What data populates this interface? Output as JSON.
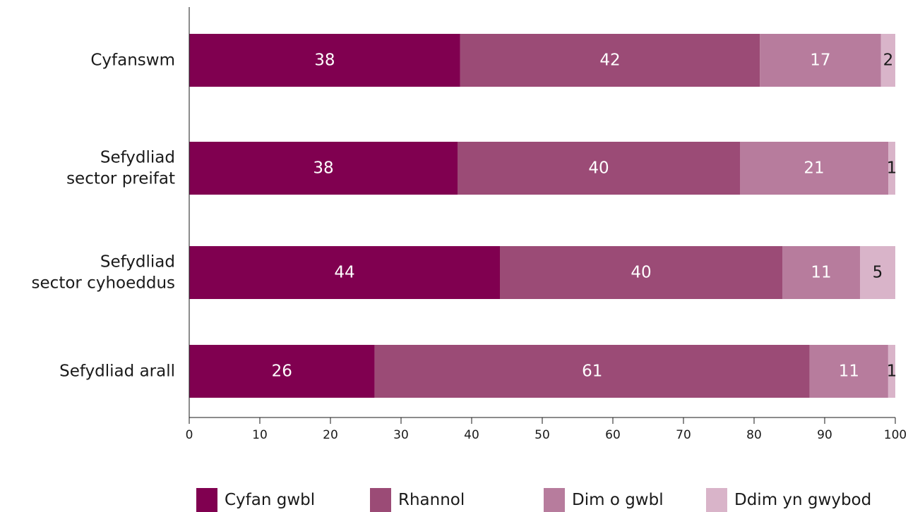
{
  "chart_data": {
    "type": "bar",
    "orientation": "horizontal",
    "stacked": true,
    "title": "",
    "xlabel": "",
    "ylabel": "",
    "xlim": [
      0,
      100
    ],
    "x_ticks": [
      0,
      10,
      20,
      30,
      40,
      50,
      60,
      70,
      80,
      90,
      100
    ],
    "grid": false,
    "legend_position": "bottom",
    "categories": [
      [
        "Cyfanswm"
      ],
      [
        "Sefydliad",
        "sector preifat"
      ],
      [
        "Sefydliad",
        "sector cyhoeddus"
      ],
      [
        "Sefydliad arall"
      ]
    ],
    "series": [
      {
        "name": "Cyfan gwbl",
        "color": "#800050",
        "label_color": "#ffffff",
        "values": [
          38,
          38,
          44,
          26
        ],
        "labels": [
          "38",
          "38",
          "44",
          "26"
        ]
      },
      {
        "name": "Rhannol",
        "color": "#9b4b76",
        "label_color": "#ffffff",
        "values": [
          42,
          40,
          40,
          61
        ],
        "labels": [
          "42",
          "40",
          "40",
          "61"
        ]
      },
      {
        "name": "Dim o gwbl",
        "color": "#b77c9d",
        "label_color": "#ffffff",
        "values": [
          17,
          21,
          11,
          11
        ],
        "labels": [
          "17",
          "21",
          "11",
          "11"
        ]
      },
      {
        "name": "Ddim yn gwybod",
        "color": "#d9b4c9",
        "label_color": "#1a1a1a",
        "values": [
          2,
          1,
          5,
          1
        ],
        "labels": [
          "2",
          "1",
          "5",
          "1"
        ]
      }
    ]
  }
}
